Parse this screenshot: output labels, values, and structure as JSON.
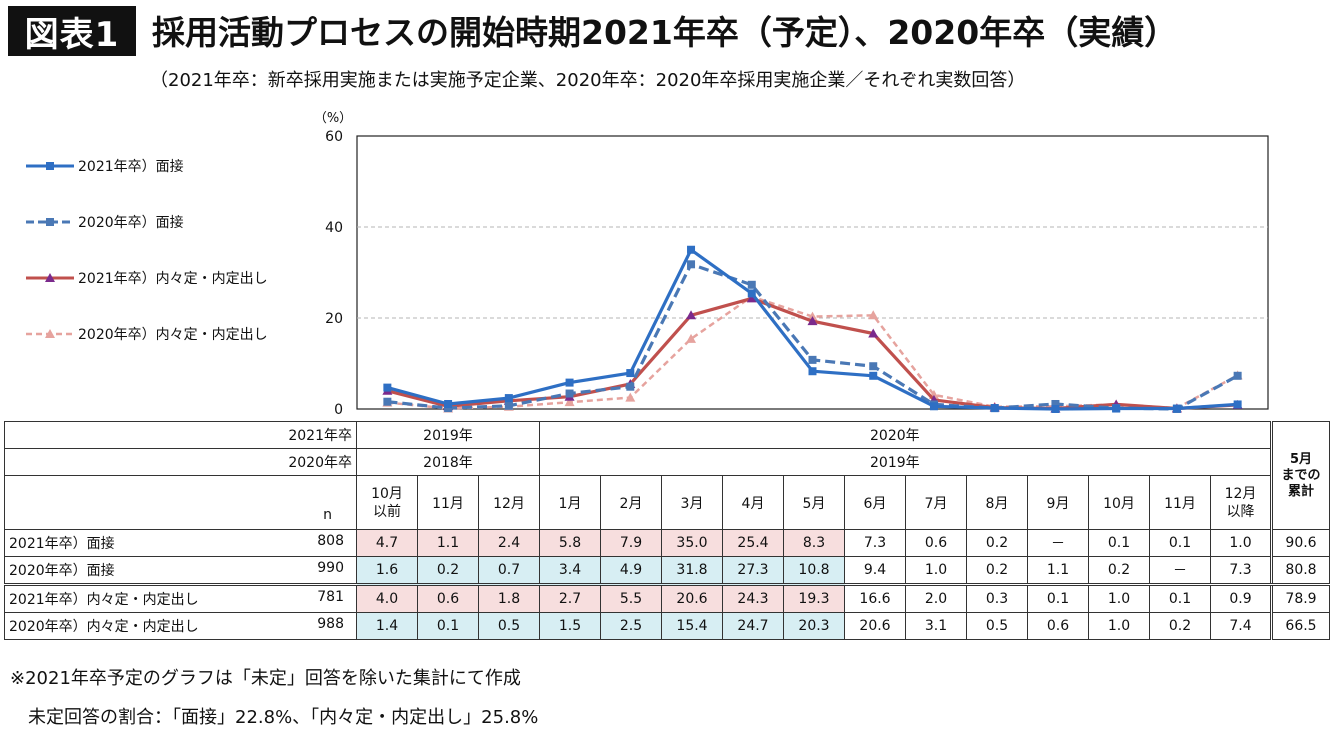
{
  "badge": "図表1",
  "title": "採用活動プロセスの開始時期2021年卒（予定）、2020年卒（実績）",
  "subtitle": "（2021年卒：新卒採用実施または実施予定企業、2020年卒：2020年卒採用実施企業／それぞれ実数回答）",
  "chart_data": {
    "type": "line",
    "ylabel": "（%）",
    "ylim": [
      0,
      60
    ],
    "yticks": [
      0,
      20,
      40,
      60
    ],
    "grid": "horizontal dashed",
    "legend_position": "left",
    "categories": [
      "10月以前",
      "11月",
      "12月",
      "1月",
      "2月",
      "3月",
      "4月",
      "5月",
      "6月",
      "7月",
      "8月",
      "9月",
      "10月",
      "11月",
      "12月以降"
    ],
    "series": [
      {
        "name": "2021年卒）面接",
        "color": "#2e6fc4",
        "style": "solid",
        "marker": "square",
        "values": [
          4.7,
          1.1,
          2.4,
          5.8,
          7.9,
          35.0,
          25.4,
          8.3,
          7.3,
          0.6,
          0.2,
          null,
          0.1,
          0.1,
          1.0
        ]
      },
      {
        "name": "2020年卒）面接",
        "color": "#4a78b5",
        "style": "dashed",
        "marker": "square",
        "values": [
          1.6,
          0.2,
          0.7,
          3.4,
          4.9,
          31.8,
          27.3,
          10.8,
          9.4,
          1.0,
          0.2,
          1.1,
          0.2,
          null,
          7.3
        ]
      },
      {
        "name": "2021年卒）内々定・内定出し",
        "color": "#c0504d",
        "style": "solid",
        "marker": "triangle",
        "values": [
          4.0,
          0.6,
          1.8,
          2.7,
          5.5,
          20.6,
          24.3,
          19.3,
          16.6,
          2.0,
          0.3,
          0.1,
          1.0,
          0.1,
          0.9
        ]
      },
      {
        "name": "2020年卒）内々定・内定出し",
        "color": "#e6a39e",
        "style": "dashed",
        "marker": "triangle",
        "values": [
          1.4,
          0.1,
          0.5,
          1.5,
          2.5,
          15.4,
          24.7,
          20.3,
          20.6,
          3.1,
          0.5,
          0.6,
          1.0,
          0.2,
          7.4
        ]
      }
    ]
  },
  "table": {
    "row1": {
      "label": "2021年卒",
      "a": "2019年",
      "b": "2020年"
    },
    "row2": {
      "label": "2020年卒",
      "a": "2018年",
      "b": "2019年"
    },
    "n_label": "n",
    "months": [
      "10月\n以前",
      "11月",
      "12月",
      "1月",
      "2月",
      "3月",
      "4月",
      "5月",
      "6月",
      "7月",
      "8月",
      "9月",
      "10月",
      "11月",
      "12月\n以降"
    ],
    "total_header": "5月\nまでの\n累計",
    "rows": [
      {
        "label": "2021年卒）面接",
        "n": "808",
        "cells": [
          "4.7",
          "1.1",
          "2.4",
          "5.8",
          "7.9",
          "35.0",
          "25.4",
          "8.3",
          "7.3",
          "0.6",
          "0.2",
          "－",
          "0.1",
          "0.1",
          "1.0"
        ],
        "total": "90.6",
        "shade": "pink"
      },
      {
        "label": "2020年卒）面接",
        "n": "990",
        "cells": [
          "1.6",
          "0.2",
          "0.7",
          "3.4",
          "4.9",
          "31.8",
          "27.3",
          "10.8",
          "9.4",
          "1.0",
          "0.2",
          "1.1",
          "0.2",
          "－",
          "7.3"
        ],
        "total": "80.8",
        "shade": "blue"
      },
      {
        "label": "2021年卒）内々定・内定出し",
        "n": "781",
        "cells": [
          "4.0",
          "0.6",
          "1.8",
          "2.7",
          "5.5",
          "20.6",
          "24.3",
          "19.3",
          "16.6",
          "2.0",
          "0.3",
          "0.1",
          "1.0",
          "0.1",
          "0.9"
        ],
        "total": "78.9",
        "shade": "pink"
      },
      {
        "label": "2020年卒）内々定・内定出し",
        "n": "988",
        "cells": [
          "1.4",
          "0.1",
          "0.5",
          "1.5",
          "2.5",
          "15.4",
          "24.7",
          "20.3",
          "20.6",
          "3.1",
          "0.5",
          "0.6",
          "1.0",
          "0.2",
          "7.4"
        ],
        "total": "66.5",
        "shade": "blue"
      }
    ]
  },
  "notes": {
    "line1": "※2021年卒予定のグラフは「未定」回答を除いた集計にて作成",
    "line2": "未定回答の割合：「面接」22.8%、「内々定・内定出し」25.8%"
  }
}
